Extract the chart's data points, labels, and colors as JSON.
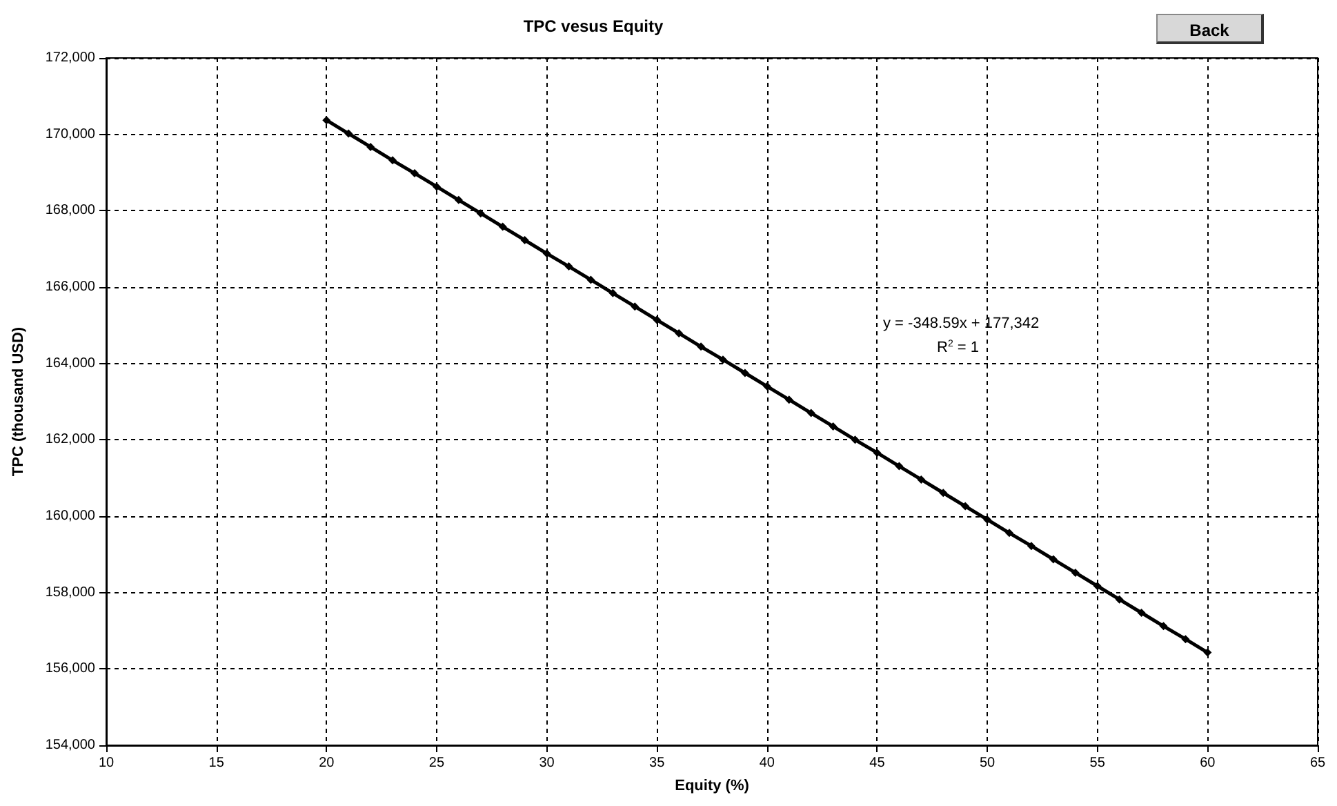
{
  "chart_data": {
    "type": "line",
    "title": "TPC vesus Equity",
    "xlabel": "Equity (%)",
    "ylabel": "TPC (thousand USD)",
    "x": [
      20,
      21,
      22,
      23,
      24,
      25,
      26,
      27,
      28,
      29,
      30,
      31,
      32,
      33,
      34,
      35,
      36,
      37,
      38,
      39,
      40,
      41,
      42,
      43,
      44,
      45,
      46,
      47,
      48,
      49,
      50,
      51,
      52,
      53,
      54,
      55,
      56,
      57,
      58,
      59,
      60
    ],
    "series": [
      {
        "color": "#000000",
        "values": [
          170370,
          170020,
          169670,
          169320,
          168980,
          168630,
          168280,
          167930,
          167580,
          167230,
          166880,
          166540,
          166190,
          165840,
          165490,
          165140,
          164790,
          164440,
          164100,
          163750,
          163400,
          163050,
          162700,
          162350,
          162000,
          161660,
          161310,
          160960,
          160610,
          160260,
          159910,
          159560,
          159220,
          158870,
          158520,
          158170,
          157820,
          157470,
          157120,
          156780,
          156430
        ]
      }
    ],
    "xlim": [
      10,
      65
    ],
    "xticks": [
      10,
      15,
      20,
      25,
      30,
      35,
      40,
      45,
      50,
      55,
      60,
      65
    ],
    "ylim": [
      154000,
      172000
    ],
    "yticks": [
      {
        "value": 154000,
        "label": "154,000"
      },
      {
        "value": 156000,
        "label": "156,000"
      },
      {
        "value": 158000,
        "label": "158,000"
      },
      {
        "value": 160000,
        "label": "160,000"
      },
      {
        "value": 162000,
        "label": "162,000"
      },
      {
        "value": 164000,
        "label": "164,000"
      },
      {
        "value": 166000,
        "label": "166,000"
      },
      {
        "value": 168000,
        "label": "168,000"
      },
      {
        "value": 170000,
        "label": "170,000"
      },
      {
        "value": 172000,
        "label": "172,000"
      }
    ],
    "annotations": [
      "y = -348.59x + 177,342",
      "R$^{2}$ = 1",
      "Back"
    ],
    "grid": true,
    "marker": "diamond",
    "line_style": "solid"
  }
}
